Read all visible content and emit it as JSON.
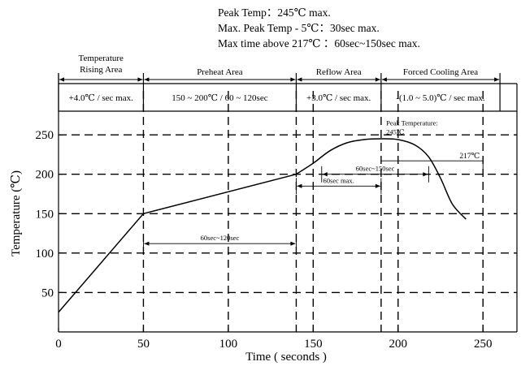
{
  "header_notes": [
    "Peak Temp：245℃ max.",
    "Max. Peak Temp - 5℃：30sec max.",
    "Max time above 217℃ ：60sec~150sec max."
  ],
  "zones": [
    {
      "name_lines": [
        "Temperature",
        "Rising Area"
      ],
      "rate": "+4.0℃ / sec max.",
      "x_start": 0,
      "x_end": 50
    },
    {
      "name_lines": [
        "Preheat Area"
      ],
      "rate": "150 ~ 200℃ / 60 ~ 120sec",
      "x_start": 50,
      "x_end": 140
    },
    {
      "name_lines": [
        "Reflow Area"
      ],
      "rate": "+3.0℃ / sec max.",
      "x_start": 140,
      "x_end": 190
    },
    {
      "name_lines": [
        "Forced Cooling Area"
      ],
      "rate": "-(1.0 ~ 5.0)℃ / sec max.",
      "x_start": 190,
      "x_end": 260
    }
  ],
  "chart_data": {
    "type": "line",
    "title": "",
    "xlabel": "Time ( seconds )",
    "ylabel": "Temperature (℃)",
    "xlim": [
      0,
      270
    ],
    "ylim": [
      0,
      280
    ],
    "x_ticks": [
      0,
      50,
      100,
      150,
      200,
      250
    ],
    "y_ticks": [
      50,
      100,
      150,
      200,
      250
    ],
    "grid": true,
    "series": [
      {
        "x": [
          0,
          50,
          140,
          150,
          160,
          170,
          180,
          190,
          200,
          210,
          218,
          225,
          232,
          240
        ],
        "y": [
          25,
          150,
          200,
          214,
          230,
          240,
          244,
          245,
          244,
          237,
          222,
          195,
          162,
          143
        ]
      }
    ],
    "annotations": [
      {
        "text": "60sec~120sec",
        "type": "span",
        "x_start": 50,
        "x_end": 140,
        "y": 112
      },
      {
        "text": "60sec max.",
        "type": "span",
        "x_start": 140,
        "x_end": 190,
        "y": 185
      },
      {
        "text": "60sec~150sec",
        "type": "span",
        "x_start": 155,
        "x_end": 218,
        "y": 200
      },
      {
        "text": "217℃",
        "type": "level",
        "x_start": 190,
        "x_end": 250,
        "y": 217
      },
      {
        "text_lines": [
          "Peak Temperature:",
          "245℃"
        ],
        "type": "label",
        "x": 193,
        "y": 262
      }
    ]
  }
}
